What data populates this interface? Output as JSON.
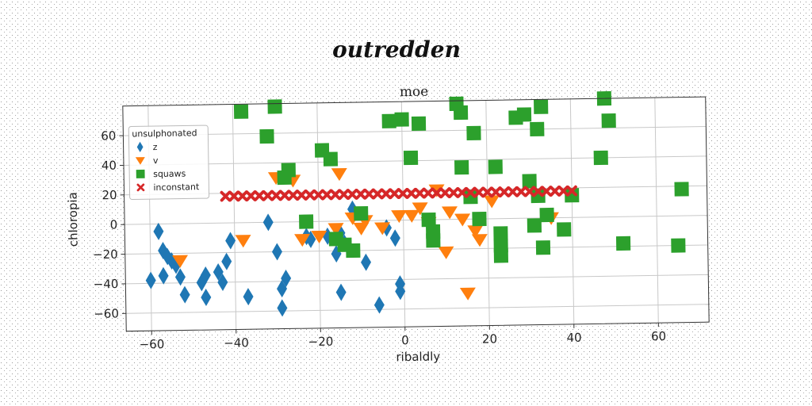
{
  "figure": {
    "suptitle": "outredden"
  },
  "chart_data": {
    "type": "scatter",
    "title": "moe",
    "xlabel": "ribaldly",
    "ylabel": "chloropia",
    "xlim": [
      -66,
      72
    ],
    "ylim": [
      -72,
      80
    ],
    "xticks": [
      -60,
      -40,
      -20,
      0,
      20,
      40,
      60
    ],
    "yticks": [
      -60,
      -40,
      -20,
      0,
      20,
      40,
      60
    ],
    "grid": true,
    "legend": {
      "title": "unsulphonated",
      "placement": "top-left",
      "entries": [
        "z",
        "v",
        "squaws",
        "inconstant"
      ]
    },
    "series": [
      {
        "name": "z",
        "marker": "diamond",
        "color": "#1f77b4",
        "points": [
          [
            -60,
            -38
          ],
          [
            -58,
            -5
          ],
          [
            -57,
            -18
          ],
          [
            -57,
            -35
          ],
          [
            -56,
            -22
          ],
          [
            -55,
            -25
          ],
          [
            -54,
            -28
          ],
          [
            -53,
            -36
          ],
          [
            -52,
            -48
          ],
          [
            -48,
            -40
          ],
          [
            -47,
            -35
          ],
          [
            -47,
            -50
          ],
          [
            -44,
            -33
          ],
          [
            -43,
            -40
          ],
          [
            -42,
            -26
          ],
          [
            -41,
            -12
          ],
          [
            -37,
            -50
          ],
          [
            -32,
            0
          ],
          [
            -30,
            -20
          ],
          [
            -29,
            -45
          ],
          [
            -29,
            -58
          ],
          [
            -28,
            -38
          ],
          [
            -23,
            -10
          ],
          [
            -22,
            -12
          ],
          [
            -18,
            -10
          ],
          [
            -16,
            -22
          ],
          [
            -15,
            -8
          ],
          [
            -14,
            -15
          ],
          [
            -9,
            -28
          ],
          [
            -12,
            8
          ],
          [
            -15,
            -48
          ],
          [
            -6,
            -57
          ],
          [
            -4,
            -5
          ],
          [
            -2,
            -12
          ],
          [
            -1,
            -43
          ],
          [
            -1,
            -48
          ]
        ]
      },
      {
        "name": "v",
        "marker": "triangle-down",
        "color": "#ff7f0e",
        "points": [
          [
            -53,
            -25
          ],
          [
            -38,
            -12
          ],
          [
            -30,
            30
          ],
          [
            -26,
            28
          ],
          [
            -24,
            -12
          ],
          [
            -20,
            -10
          ],
          [
            -16,
            -5
          ],
          [
            -15,
            32
          ],
          [
            -12,
            2
          ],
          [
            -10,
            -5
          ],
          [
            -9,
            0
          ],
          [
            -5,
            -5
          ],
          [
            -1,
            3
          ],
          [
            2,
            3
          ],
          [
            4,
            8
          ],
          [
            6,
            -2
          ],
          [
            8,
            20
          ],
          [
            10,
            -22
          ],
          [
            11,
            5
          ],
          [
            14,
            0
          ],
          [
            15,
            -50
          ],
          [
            17,
            -8
          ],
          [
            18,
            -14
          ],
          [
            21,
            12
          ],
          [
            35,
            0
          ]
        ]
      },
      {
        "name": "squaws",
        "marker": "square",
        "color": "#2ca02c",
        "points": [
          [
            -38,
            75
          ],
          [
            -30,
            78
          ],
          [
            -32,
            58
          ],
          [
            -28,
            30
          ],
          [
            -27,
            35
          ],
          [
            -23,
            0
          ],
          [
            -19,
            48
          ],
          [
            -17,
            42
          ],
          [
            -16,
            -12
          ],
          [
            -14,
            -16
          ],
          [
            -12,
            -20
          ],
          [
            -10,
            5
          ],
          [
            -3,
            67
          ],
          [
            0,
            68
          ],
          [
            2,
            42
          ],
          [
            4,
            65
          ],
          [
            6,
            0
          ],
          [
            7,
            -8
          ],
          [
            7,
            -14
          ],
          [
            13,
            78
          ],
          [
            14,
            72
          ],
          [
            14,
            35
          ],
          [
            16,
            15
          ],
          [
            17,
            58
          ],
          [
            18,
            0
          ],
          [
            22,
            35
          ],
          [
            23,
            -10
          ],
          [
            23,
            -18
          ],
          [
            23,
            -25
          ],
          [
            27,
            68
          ],
          [
            29,
            70
          ],
          [
            30,
            25
          ],
          [
            31,
            -5
          ],
          [
            32,
            60
          ],
          [
            32,
            15
          ],
          [
            33,
            75
          ],
          [
            33,
            -20
          ],
          [
            34,
            2
          ],
          [
            38,
            -8
          ],
          [
            40,
            15
          ],
          [
            47,
            40
          ],
          [
            48,
            80
          ],
          [
            49,
            65
          ],
          [
            52,
            -18
          ],
          [
            66,
            18
          ],
          [
            65,
            -20
          ]
        ]
      },
      {
        "name": "inconstant",
        "marker": "x",
        "color": "#d62728",
        "points": [
          [
            -42,
            18
          ],
          [
            -40,
            18
          ],
          [
            -38,
            18
          ],
          [
            -36,
            18
          ],
          [
            -34,
            18
          ],
          [
            -32,
            18
          ],
          [
            -30,
            18
          ],
          [
            -28,
            18
          ],
          [
            -26,
            18
          ],
          [
            -24,
            18
          ],
          [
            -22,
            18
          ],
          [
            -20,
            18
          ],
          [
            -18,
            18
          ],
          [
            -16,
            18
          ],
          [
            -14,
            18
          ],
          [
            -12,
            18
          ],
          [
            -10,
            18
          ],
          [
            -8,
            18
          ],
          [
            -6,
            18
          ],
          [
            -4,
            18
          ],
          [
            -2,
            18
          ],
          [
            0,
            18
          ],
          [
            2,
            18
          ],
          [
            4,
            18
          ],
          [
            6,
            18
          ],
          [
            8,
            18
          ],
          [
            10,
            18
          ],
          [
            12,
            18
          ],
          [
            14,
            18
          ],
          [
            16,
            18
          ],
          [
            18,
            18
          ],
          [
            20,
            18
          ],
          [
            22,
            18
          ],
          [
            24,
            18
          ],
          [
            26,
            18
          ],
          [
            28,
            18
          ],
          [
            30,
            18
          ],
          [
            32,
            18
          ],
          [
            34,
            18
          ],
          [
            36,
            18
          ],
          [
            38,
            18
          ],
          [
            40,
            18
          ]
        ]
      }
    ]
  }
}
